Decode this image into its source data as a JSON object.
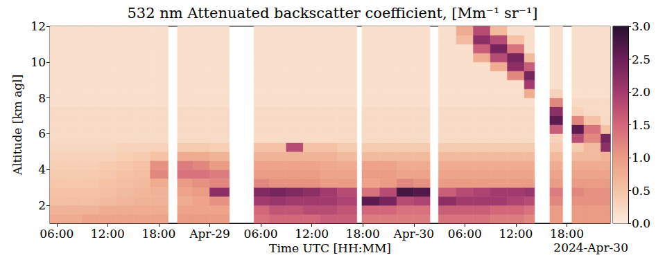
{
  "chart_data": {
    "type": "heatmap",
    "title": "532 nm Attenuated backscatter coefficient, [Mm⁻¹ sr⁻¹]",
    "x_label": "Time UTC [HH:MM]",
    "y_label": "Altitude [km agl]",
    "annotation": "2024-Apr-30",
    "grid": false,
    "xlim": [
      "2024-04-28T05:12",
      "2024-04-30T23:06"
    ],
    "xticks": [
      {
        "value": "2024-04-28T06:00",
        "label": "06:00"
      },
      {
        "value": "2024-04-28T12:00",
        "label": "12:00"
      },
      {
        "value": "2024-04-28T18:00",
        "label": "18:00"
      },
      {
        "value": "2024-04-29T00:00",
        "label": "Apr-29"
      },
      {
        "value": "2024-04-29T06:00",
        "label": "06:00"
      },
      {
        "value": "2024-04-29T12:00",
        "label": "12:00"
      },
      {
        "value": "2024-04-29T18:00",
        "label": "18:00"
      },
      {
        "value": "2024-04-30T00:00",
        "label": "Apr-30"
      },
      {
        "value": "2024-04-30T06:00",
        "label": "06:00"
      },
      {
        "value": "2024-04-30T12:00",
        "label": "12:00"
      },
      {
        "value": "2024-04-30T18:00",
        "label": "18:00"
      }
    ],
    "ylim": [
      1,
      12
    ],
    "yticks": [
      2,
      4,
      6,
      8,
      10,
      12
    ],
    "x_edges": [
      "2024-04-28T05:12",
      "2024-04-28T07:00",
      "2024-04-28T09:00",
      "2024-04-28T11:00",
      "2024-04-28T13:00",
      "2024-04-28T15:00",
      "2024-04-28T17:00",
      "2024-04-28T19:06",
      "2024-04-28T20:12",
      "2024-04-28T22:00",
      "2024-04-29T00:00",
      "2024-04-29T02:18",
      "2024-04-29T05:12",
      "2024-04-29T07:00",
      "2024-04-29T09:00",
      "2024-04-29T11:00",
      "2024-04-29T13:00",
      "2024-04-29T15:00",
      "2024-04-29T17:18",
      "2024-04-29T17:54",
      "2024-04-29T20:00",
      "2024-04-29T22:00",
      "2024-04-30T00:00",
      "2024-04-30T01:54",
      "2024-04-30T02:54",
      "2024-04-30T05:00",
      "2024-04-30T07:00",
      "2024-04-30T09:00",
      "2024-04-30T11:00",
      "2024-04-30T13:00",
      "2024-04-30T14:12",
      "2024-04-30T16:00",
      "2024-04-30T17:30",
      "2024-04-30T18:36",
      "2024-04-30T20:00",
      "2024-04-30T22:00",
      "2024-04-30T23:06"
    ],
    "y_edges": [
      1,
      1.5,
      2,
      2.5,
      3,
      3.5,
      4,
      4.5,
      5,
      5.5,
      6,
      6.5,
      7,
      7.5,
      8,
      8.5,
      9,
      9.5,
      10,
      10.5,
      11,
      11.5,
      12
    ],
    "cells": [
      [
        0.8,
        0.7,
        0.55,
        0.5,
        0.45,
        0.4,
        0.35,
        0.3,
        0.25,
        0.2,
        0.2,
        0.2,
        0.2,
        0.15,
        0.15,
        0.15,
        0.15,
        0.15,
        0.15,
        0.15,
        0.15,
        0.15
      ],
      [
        0.8,
        0.7,
        0.55,
        0.5,
        0.45,
        0.4,
        0.35,
        0.3,
        0.25,
        0.2,
        0.2,
        0.2,
        0.2,
        0.15,
        0.15,
        0.15,
        0.15,
        0.15,
        0.15,
        0.15,
        0.15,
        0.15
      ],
      [
        0.9,
        0.7,
        0.55,
        0.5,
        0.45,
        0.4,
        0.35,
        0.3,
        0.25,
        0.2,
        0.2,
        0.2,
        0.2,
        0.15,
        0.15,
        0.15,
        0.15,
        0.15,
        0.15,
        0.15,
        0.15,
        0.15
      ],
      [
        0.9,
        0.8,
        0.6,
        0.55,
        0.5,
        0.45,
        0.4,
        0.3,
        0.25,
        0.2,
        0.2,
        0.2,
        0.2,
        0.15,
        0.15,
        0.15,
        0.15,
        0.15,
        0.15,
        0.15,
        0.15,
        0.15
      ],
      [
        0.9,
        0.8,
        0.65,
        0.6,
        0.55,
        0.5,
        0.45,
        0.35,
        0.3,
        0.2,
        0.2,
        0.2,
        0.2,
        0.15,
        0.15,
        0.15,
        0.15,
        0.15,
        0.15,
        0.15,
        0.15,
        0.15
      ],
      [
        0.9,
        0.8,
        0.7,
        0.65,
        0.6,
        0.55,
        0.5,
        0.4,
        0.3,
        0.2,
        0.2,
        0.2,
        0.2,
        0.15,
        0.15,
        0.15,
        0.15,
        0.15,
        0.15,
        0.15,
        0.15,
        0.15
      ],
      [
        0.9,
        0.8,
        0.7,
        0.7,
        0.8,
        1.2,
        1.1,
        0.5,
        0.3,
        0.2,
        0.2,
        0.2,
        0.2,
        0.15,
        0.15,
        0.15,
        0.15,
        0.15,
        0.15,
        0.15,
        0.15,
        0.15
      ],
      null,
      [
        1.0,
        0.9,
        0.8,
        0.9,
        1.0,
        1.4,
        1.3,
        0.8,
        0.4,
        0.2,
        0.2,
        0.2,
        0.2,
        0.15,
        0.15,
        0.15,
        0.15,
        0.15,
        0.15,
        0.15,
        0.15,
        0.15
      ],
      [
        1.0,
        0.9,
        0.9,
        1.0,
        1.1,
        1.4,
        1.2,
        0.8,
        0.4,
        0.2,
        0.2,
        0.2,
        0.2,
        0.15,
        0.15,
        0.15,
        0.15,
        0.15,
        0.15,
        0.15,
        0.15,
        0.15
      ],
      [
        1.0,
        0.9,
        1.1,
        2.2,
        1.2,
        1.3,
        1.0,
        0.7,
        0.35,
        0.2,
        0.2,
        0.2,
        0.2,
        0.15,
        0.15,
        0.15,
        0.15,
        0.15,
        0.15,
        0.15,
        0.15,
        0.15
      ],
      null,
      [
        1.4,
        1.5,
        2.0,
        2.3,
        1.2,
        1.0,
        0.9,
        0.7,
        0.5,
        0.2,
        0.2,
        0.2,
        0.2,
        0.15,
        0.15,
        0.15,
        0.15,
        0.15,
        0.15,
        0.15,
        0.15,
        0.15
      ],
      [
        1.5,
        1.7,
        2.1,
        2.4,
        1.1,
        1.0,
        0.9,
        0.7,
        0.5,
        0.2,
        0.2,
        0.2,
        0.2,
        0.15,
        0.15,
        0.15,
        0.15,
        0.15,
        0.15,
        0.15,
        0.15,
        0.15
      ],
      [
        1.5,
        1.7,
        2.0,
        2.3,
        1.1,
        1.0,
        0.9,
        0.7,
        1.8,
        0.2,
        0.2,
        0.2,
        0.2,
        0.15,
        0.15,
        0.15,
        0.15,
        0.15,
        0.15,
        0.15,
        0.15,
        0.15
      ],
      [
        1.5,
        1.8,
        2.0,
        2.2,
        1.1,
        1.0,
        0.9,
        0.7,
        0.5,
        0.2,
        0.2,
        0.2,
        0.2,
        0.15,
        0.15,
        0.15,
        0.15,
        0.15,
        0.15,
        0.15,
        0.15,
        0.15
      ],
      [
        1.6,
        1.8,
        2.0,
        2.0,
        1.0,
        0.9,
        0.85,
        0.7,
        0.5,
        0.2,
        0.2,
        0.2,
        0.2,
        0.15,
        0.15,
        0.15,
        0.15,
        0.15,
        0.15,
        0.15,
        0.15,
        0.15
      ],
      [
        1.6,
        1.7,
        1.9,
        1.8,
        1.0,
        0.9,
        0.8,
        0.6,
        0.4,
        0.2,
        0.2,
        0.2,
        0.2,
        0.15,
        0.15,
        0.15,
        0.15,
        0.15,
        0.15,
        0.15,
        0.15,
        0.15
      ],
      null,
      [
        1.3,
        1.5,
        2.6,
        1.4,
        0.9,
        1.0,
        0.9,
        0.6,
        0.4,
        0.2,
        0.2,
        0.2,
        0.2,
        0.15,
        0.15,
        0.15,
        0.15,
        0.15,
        0.15,
        0.15,
        0.15,
        0.15
      ],
      [
        1.3,
        1.5,
        2.4,
        1.8,
        1.0,
        1.0,
        0.9,
        0.6,
        0.4,
        0.2,
        0.2,
        0.2,
        0.2,
        0.15,
        0.15,
        0.15,
        0.15,
        0.15,
        0.15,
        0.15,
        0.15,
        0.15
      ],
      [
        1.3,
        1.4,
        1.8,
        2.8,
        1.2,
        0.9,
        0.8,
        0.6,
        0.4,
        0.2,
        0.2,
        0.2,
        0.2,
        0.15,
        0.15,
        0.15,
        0.15,
        0.15,
        0.15,
        0.15,
        0.15,
        0.15
      ],
      [
        1.3,
        1.4,
        1.9,
        2.7,
        1.1,
        0.9,
        0.8,
        0.6,
        0.4,
        0.2,
        0.2,
        0.2,
        0.2,
        0.15,
        0.15,
        0.15,
        0.15,
        0.15,
        0.15,
        0.15,
        0.15,
        0.15
      ],
      null,
      [
        1.4,
        1.6,
        2.2,
        1.6,
        1.0,
        0.9,
        0.8,
        0.6,
        0.4,
        0.2,
        0.2,
        0.2,
        0.2,
        0.15,
        0.15,
        0.15,
        0.15,
        0.15,
        0.15,
        0.15,
        0.15,
        0.15
      ],
      [
        1.4,
        1.6,
        2.0,
        1.8,
        1.0,
        0.9,
        0.8,
        0.6,
        0.4,
        0.2,
        0.2,
        0.2,
        0.2,
        0.15,
        0.15,
        0.15,
        0.15,
        0.15,
        0.15,
        0.15,
        0.6,
        0.8
      ],
      [
        1.4,
        1.6,
        2.0,
        1.9,
        1.0,
        0.9,
        0.8,
        0.6,
        0.4,
        0.2,
        0.2,
        0.2,
        0.2,
        0.15,
        0.15,
        0.15,
        0.15,
        0.15,
        0.8,
        1.6,
        2.2,
        1.8
      ],
      [
        1.3,
        1.5,
        2.0,
        2.0,
        1.0,
        0.9,
        0.8,
        0.6,
        0.4,
        0.2,
        0.2,
        0.2,
        0.2,
        0.15,
        0.15,
        0.15,
        0.15,
        0.8,
        1.8,
        2.4,
        1.8,
        0.6
      ],
      [
        1.3,
        1.5,
        1.9,
        2.0,
        1.0,
        0.9,
        0.8,
        0.6,
        0.4,
        0.2,
        0.2,
        0.2,
        0.2,
        0.15,
        0.15,
        0.15,
        1.2,
        2.2,
        2.4,
        1.4,
        0.5,
        0.15
      ],
      [
        1.2,
        1.4,
        1.8,
        2.1,
        1.0,
        0.9,
        0.8,
        0.6,
        0.4,
        0.2,
        0.2,
        0.2,
        0.2,
        0.15,
        0.8,
        2.0,
        2.4,
        1.6,
        0.6,
        0.15,
        0.15,
        0.15
      ],
      null,
      [
        1.0,
        1.0,
        1.2,
        1.3,
        1.0,
        0.9,
        0.8,
        0.6,
        0.4,
        0.3,
        1.6,
        2.6,
        2.2,
        1.2,
        0.3,
        0.15,
        0.15,
        0.15,
        0.15,
        0.15,
        0.15,
        0.15
      ],
      null,
      [
        1.0,
        1.0,
        1.1,
        1.2,
        1.0,
        0.9,
        0.8,
        0.6,
        0.4,
        1.8,
        2.6,
        1.2,
        0.3,
        0.2,
        0.15,
        0.15,
        0.15,
        0.15,
        0.15,
        0.15,
        0.15,
        0.15
      ],
      [
        1.0,
        1.0,
        1.1,
        1.1,
        1.0,
        0.9,
        0.8,
        0.6,
        0.6,
        1.2,
        1.4,
        0.5,
        0.2,
        0.2,
        0.15,
        0.15,
        0.15,
        0.15,
        0.15,
        0.15,
        0.15,
        0.15
      ],
      [
        1.0,
        1.0,
        1.1,
        1.1,
        1.0,
        0.9,
        0.8,
        0.7,
        2.2,
        2.4,
        0.5,
        0.2,
        0.2,
        0.2,
        0.15,
        0.15,
        0.15,
        0.15,
        0.15,
        0.15,
        0.15,
        0.15
      ]
    ],
    "colorbar": {
      "range": [
        0,
        3
      ],
      "ticks": [
        {
          "value": 0,
          "label": "0.0"
        },
        {
          "value": 0.5,
          "label": "0.5"
        },
        {
          "value": 1,
          "label": "1.0"
        },
        {
          "value": 1.5,
          "label": "1.5"
        },
        {
          "value": 2,
          "label": "2.0"
        },
        {
          "value": 2.5,
          "label": "2.5"
        },
        {
          "value": 3,
          "label": "3.0"
        }
      ]
    }
  }
}
